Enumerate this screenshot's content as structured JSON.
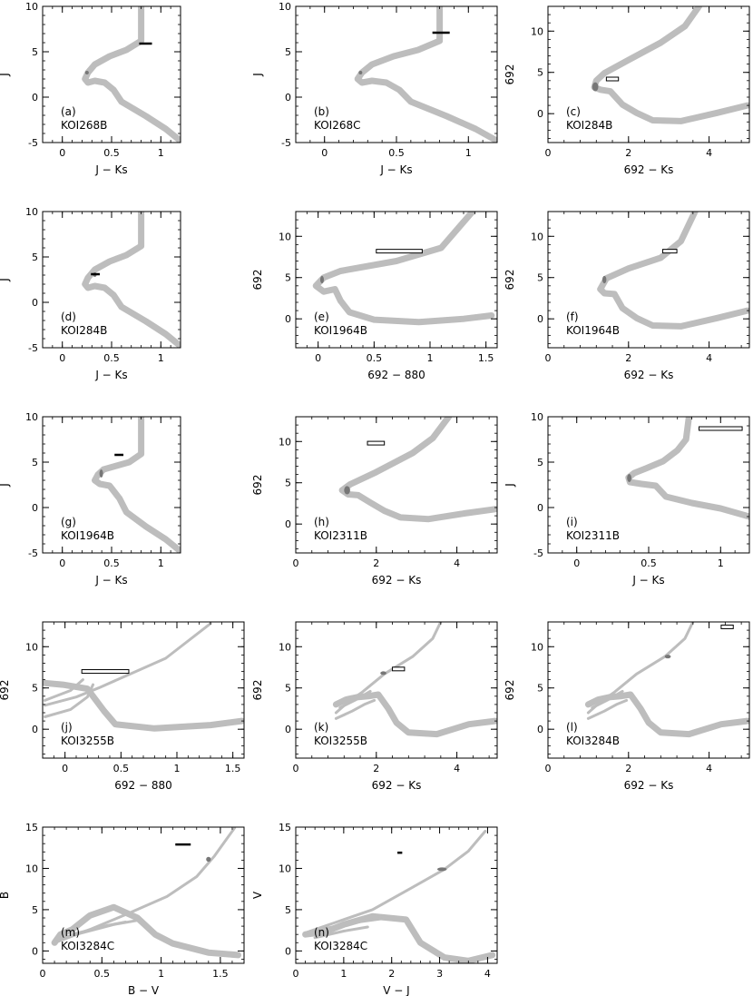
{
  "chart_data": [
    {
      "type": "scatter",
      "panel": "(a)",
      "label": "KOI268B",
      "xlabel": "J − Ks",
      "ylabel": "J",
      "xlim": [
        -0.2,
        1.2
      ],
      "ylim": [
        10,
        -5
      ],
      "xticks": [
        0,
        0.5,
        1
      ],
      "xticklabels": [
        "0",
        "0.5",
        "1"
      ],
      "yticks": [
        -5,
        0,
        5,
        10
      ],
      "yticklabels": [
        "-5",
        "0",
        "5",
        "10"
      ],
      "isochrone": "A",
      "star": {
        "x": [
          0.24,
          0.26
        ],
        "y": [
          2.5,
          2.9
        ]
      },
      "measurement": {
        "x": [
          0.78,
          0.91
        ],
        "y": 5.9,
        "style": "solid"
      }
    },
    {
      "type": "scatter",
      "panel": "(b)",
      "label": "KOI268C",
      "xlabel": "J − Ks",
      "ylabel": "J",
      "xlim": [
        -0.2,
        1.2
      ],
      "ylim": [
        10,
        -5
      ],
      "xticks": [
        0,
        0.5,
        1
      ],
      "xticklabels": [
        "0",
        "0.5",
        "1"
      ],
      "yticks": [
        -5,
        0,
        5,
        10
      ],
      "yticklabels": [
        "-5",
        "0",
        "5",
        "10"
      ],
      "isochrone": "A",
      "star": {
        "x": [
          0.24,
          0.26
        ],
        "y": [
          2.5,
          2.9
        ]
      },
      "measurement": {
        "x": [
          0.75,
          0.87
        ],
        "y": 7.1,
        "style": "solid"
      }
    },
    {
      "type": "scatter",
      "panel": "(c)",
      "label": "KOI284B",
      "xlabel": "692 − Ks",
      "ylabel": "692",
      "xlim": [
        0,
        5
      ],
      "ylim": [
        13,
        -3.5
      ],
      "xticks": [
        0,
        2,
        4
      ],
      "xticklabels": [
        "0",
        "2",
        "4"
      ],
      "yticks": [
        0,
        5,
        10
      ],
      "yticklabels": [
        "0",
        "5",
        "10"
      ],
      "isochrone": "B",
      "star": {
        "x": [
          1.1,
          1.25
        ],
        "y": [
          2.7,
          3.8
        ]
      },
      "measurement": {
        "x": [
          1.45,
          1.75
        ],
        "y": 4.2,
        "style": "open"
      }
    },
    {
      "type": "scatter",
      "panel": "(d)",
      "label": "KOI284B",
      "xlabel": "J − Ks",
      "ylabel": "J",
      "xlim": [
        -0.2,
        1.2
      ],
      "ylim": [
        10,
        -5
      ],
      "xticks": [
        0,
        0.5,
        1
      ],
      "xticklabels": [
        "0",
        "0.5",
        "1"
      ],
      "yticks": [
        -5,
        0,
        5,
        10
      ],
      "yticklabels": [
        "-5",
        "0",
        "5",
        "10"
      ],
      "isochrone": "A",
      "star": {
        "x": [
          0.32,
          0.34
        ],
        "y": [
          2.8,
          3.3
        ]
      },
      "measurement": {
        "x": [
          0.29,
          0.38
        ],
        "y": 3.1,
        "style": "solid"
      }
    },
    {
      "type": "scatter",
      "panel": "(e)",
      "label": "KOI1964B",
      "xlabel": "692 − 880",
      "ylabel": "692",
      "xlim": [
        -0.2,
        1.6
      ],
      "ylim": [
        13,
        -3.5
      ],
      "xticks": [
        0,
        0.5,
        1,
        1.5
      ],
      "xticklabels": [
        "0",
        "0.5",
        "1",
        "1.5"
      ],
      "yticks": [
        0,
        5,
        10
      ],
      "yticklabels": [
        "0",
        "5",
        "10"
      ],
      "isochrone": "C",
      "star": {
        "x": [
          0.02,
          0.05
        ],
        "y": [
          4.3,
          5.2
        ]
      },
      "measurement": {
        "x": [
          0.52,
          0.93
        ],
        "y": 8.2,
        "style": "open"
      }
    },
    {
      "type": "scatter",
      "panel": "(f)",
      "label": "KOI1964B",
      "xlabel": "692 − Ks",
      "ylabel": "692",
      "xlim": [
        0,
        5
      ],
      "ylim": [
        13,
        -3.5
      ],
      "xticks": [
        0,
        2,
        4
      ],
      "xticklabels": [
        "0",
        "2",
        "4"
      ],
      "yticks": [
        0,
        5,
        10
      ],
      "yticklabels": [
        "0",
        "5",
        "10"
      ],
      "isochrone": "B2",
      "star": {
        "x": [
          1.35,
          1.45
        ],
        "y": [
          4.3,
          5.2
        ]
      },
      "measurement": {
        "x": [
          2.85,
          3.2
        ],
        "y": 8.2,
        "style": "open"
      }
    },
    {
      "type": "scatter",
      "panel": "(g)",
      "label": "KOI1964B",
      "xlabel": "J − Ks",
      "ylabel": "J",
      "xlim": [
        -0.2,
        1.2
      ],
      "ylim": [
        10,
        -5
      ],
      "xticks": [
        0,
        0.5,
        1
      ],
      "xticklabels": [
        "0",
        "0.5",
        "1"
      ],
      "yticks": [
        -5,
        0,
        5,
        10
      ],
      "yticklabels": [
        "-5",
        "0",
        "5",
        "10"
      ],
      "isochrone": "A2",
      "star": {
        "x": [
          0.38,
          0.41
        ],
        "y": [
          3.3,
          4.2
        ]
      },
      "measurement": {
        "x": [
          0.53,
          0.62
        ],
        "y": 5.8,
        "style": "solid"
      }
    },
    {
      "type": "scatter",
      "panel": "(h)",
      "label": "KOI2311B",
      "xlabel": "692 − Ks",
      "ylabel": "692",
      "xlim": [
        0,
        5
      ],
      "ylim": [
        13,
        -3.5
      ],
      "xticks": [
        0,
        2,
        4
      ],
      "xticklabels": [
        "0",
        "2",
        "4"
      ],
      "yticks": [
        0,
        5,
        10
      ],
      "yticklabels": [
        "0",
        "5",
        "10"
      ],
      "isochrone": "B3",
      "star": {
        "x": [
          1.2,
          1.35
        ],
        "y": [
          3.6,
          4.6
        ]
      },
      "measurement": {
        "x": [
          1.78,
          2.2
        ],
        "y": 9.8,
        "style": "open"
      }
    },
    {
      "type": "scatter",
      "panel": "(i)",
      "label": "KOI2311B",
      "xlabel": "J − Ks",
      "ylabel": "J",
      "xlim": [
        -0.2,
        1.2
      ],
      "ylim": [
        10,
        -5
      ],
      "xticks": [
        0,
        0.5,
        1
      ],
      "xticklabels": [
        "0",
        "0.5",
        "1"
      ],
      "yticks": [
        -5,
        0,
        5,
        10
      ],
      "yticklabels": [
        "-5",
        "0",
        "5",
        "10"
      ],
      "isochrone": "A3",
      "star": {
        "x": [
          0.35,
          0.38
        ],
        "y": [
          2.8,
          3.7
        ]
      },
      "measurement": {
        "x": [
          0.85,
          1.15
        ],
        "y": 8.7,
        "style": "open"
      }
    },
    {
      "type": "scatter",
      "panel": "(j)",
      "label": "KOI3255B",
      "xlabel": "692 − 880",
      "ylabel": "692",
      "xlim": [
        -0.2,
        1.6
      ],
      "ylim": [
        13,
        -3.5
      ],
      "xticks": [
        0,
        0.5,
        1,
        1.5
      ],
      "xticklabels": [
        "0",
        "0.5",
        "1",
        "1.5"
      ],
      "yticks": [
        0,
        5,
        10
      ],
      "yticklabels": [
        "0",
        "5",
        "10"
      ],
      "isochrone": "D",
      "star": null,
      "measurement": {
        "x": [
          0.15,
          0.57
        ],
        "y": 7.0,
        "style": "open"
      }
    },
    {
      "type": "scatter",
      "panel": "(k)",
      "label": "KOI3255B",
      "xlabel": "692 − Ks",
      "ylabel": "692",
      "xlim": [
        0,
        5
      ],
      "ylim": [
        13,
        -3.5
      ],
      "xticks": [
        0,
        2,
        4
      ],
      "xticklabels": [
        "0",
        "2",
        "4"
      ],
      "yticks": [
        0,
        5,
        10
      ],
      "yticklabels": [
        "0",
        "5",
        "10"
      ],
      "isochrone": "E",
      "star": {
        "x": [
          2.1,
          2.25
        ],
        "y": [
          6.6,
          7.0
        ]
      },
      "measurement": {
        "x": [
          2.4,
          2.7
        ],
        "y": 7.3,
        "style": "open"
      }
    },
    {
      "type": "scatter",
      "panel": "(l)",
      "label": "KOI3284B",
      "xlabel": "692 − Ks",
      "ylabel": "692",
      "xlim": [
        0,
        5
      ],
      "ylim": [
        13,
        -3.5
      ],
      "xticks": [
        0,
        2,
        4
      ],
      "xticklabels": [
        "0",
        "2",
        "4"
      ],
      "yticks": [
        0,
        5,
        10
      ],
      "yticklabels": [
        "0",
        "5",
        "10"
      ],
      "isochrone": "E",
      "star": {
        "x": [
          2.9,
          3.05
        ],
        "y": [
          8.6,
          9.0
        ]
      },
      "measurement": {
        "x": [
          4.3,
          4.6
        ],
        "y": 12.4,
        "style": "open"
      }
    },
    {
      "type": "scatter",
      "panel": "(m)",
      "label": "KOI3284C",
      "xlabel": "B − V",
      "ylabel": "B",
      "xlim": [
        0,
        1.7
      ],
      "ylim": [
        15,
        -1.5
      ],
      "xticks": [
        0,
        0.5,
        1,
        1.5
      ],
      "xticklabels": [
        "0",
        "0.5",
        "1",
        "1.5"
      ],
      "yticks": [
        0,
        5,
        10,
        15
      ],
      "yticklabels": [
        "0",
        "5",
        "10",
        "15"
      ],
      "isochrone": "F",
      "star": {
        "x": [
          1.38,
          1.42
        ],
        "y": [
          10.8,
          11.4
        ]
      },
      "measurement": {
        "x": [
          1.12,
          1.25
        ],
        "y": 12.9,
        "style": "solid"
      }
    },
    {
      "type": "scatter",
      "panel": "(n)",
      "label": "KOI3284C",
      "xlabel": "V − J",
      "ylabel": "V",
      "xlim": [
        0,
        4.2
      ],
      "ylim": [
        15,
        -1.5
      ],
      "xticks": [
        0,
        1,
        2,
        3,
        4
      ],
      "xticklabels": [
        "0",
        "1",
        "2",
        "3",
        "4"
      ],
      "yticks": [
        0,
        5,
        10,
        15
      ],
      "yticklabels": [
        "0",
        "5",
        "10",
        "15"
      ],
      "isochrone": "G",
      "star": {
        "x": [
          2.95,
          3.15
        ],
        "y": [
          9.7,
          10.1
        ]
      },
      "measurement": {
        "x": [
          2.12,
          2.22
        ],
        "y": 11.9,
        "style": "solid"
      }
    }
  ],
  "colors": {
    "isochrone": "#bdbdbd",
    "star": "#777777",
    "measurement": "#000000"
  }
}
